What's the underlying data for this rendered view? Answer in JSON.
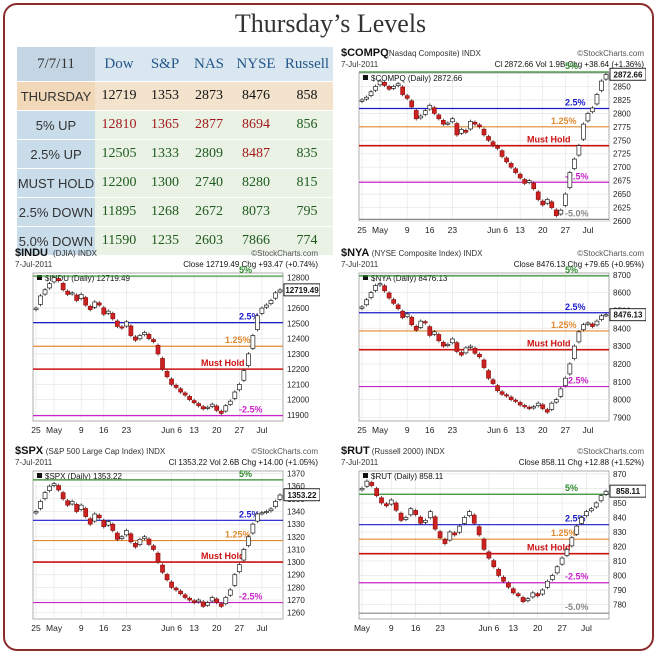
{
  "title": "Thursday’s Levels",
  "table": {
    "date": "7/7/11",
    "headers": [
      "Dow",
      "S&P",
      "NAS",
      "NYSE",
      "Russell"
    ],
    "rows": [
      {
        "label": "THURSDAY",
        "values": [
          "12719",
          "1353",
          "2873",
          "8476",
          "858"
        ],
        "colors": [
          "blk",
          "blk",
          "blk",
          "blk",
          "blk"
        ]
      },
      {
        "label": "5% UP",
        "values": [
          "12810",
          "1365",
          "2877",
          "8694",
          "856"
        ],
        "colors": [
          "red",
          "red",
          "red",
          "red",
          "grn"
        ]
      },
      {
        "label": "2.5% UP",
        "values": [
          "12505",
          "1333",
          "2809",
          "8487",
          "835"
        ],
        "colors": [
          "grn",
          "grn",
          "grn",
          "red",
          "grn"
        ]
      },
      {
        "label": "MUST HOLD",
        "values": [
          "12200",
          "1300",
          "2740",
          "8280",
          "815"
        ],
        "colors": [
          "grn",
          "grn",
          "grn",
          "grn",
          "grn"
        ]
      },
      {
        "label": "2.5% DOWN",
        "values": [
          "11895",
          "1268",
          "2672",
          "8073",
          "795"
        ],
        "colors": [
          "grn",
          "grn",
          "grn",
          "grn",
          "grn"
        ]
      },
      {
        "label": "5.0% DOWN",
        "values": [
          "11590",
          "1235",
          "2603",
          "7866",
          "774"
        ],
        "colors": [
          "grn",
          "grn",
          "grn",
          "grn",
          "grn"
        ]
      }
    ]
  },
  "colors": {
    "up5": "#2e8b2e",
    "up25": "#1a1acc",
    "up125": "#e08a30",
    "must": "#cc1111",
    "down25": "#cc22cc",
    "down5": "#888888"
  },
  "chart_data": [
    {
      "type": "candlestick",
      "id": "compq",
      "symbol": "$COMPQ",
      "name": "(Nasdaq Composite)",
      "kind": "INDX",
      "source": "©StockCharts.com",
      "date": "7-Jul-2011",
      "stats": "Cl 2872.66  Vol 1.9B  Chg +38.64 (+1.36%)",
      "legend": "$COMPQ (Daily) 2872.66",
      "last": 2872.66,
      "last_label": "2872.66",
      "ylim": [
        2600,
        2875
      ],
      "yticks": [
        2600,
        2625,
        2650,
        2675,
        2700,
        2725,
        2750,
        2775,
        2800,
        2825,
        2850
      ],
      "xticks": [
        {
          "label": "25",
          "i": 0
        },
        {
          "label": "May",
          "i": 4
        },
        {
          "label": "9",
          "i": 10
        },
        {
          "label": "16",
          "i": 15
        },
        {
          "label": "23",
          "i": 20
        },
        {
          "label": "Jun 6",
          "i": 30
        },
        {
          "label": "13",
          "i": 35
        },
        {
          "label": "20",
          "i": 40
        },
        {
          "label": "27",
          "i": 45
        },
        {
          "label": "Jul",
          "i": 50
        }
      ],
      "levels": [
        {
          "label": "5%",
          "value": 2877,
          "c": "up5"
        },
        {
          "label": "2.5%",
          "value": 2809,
          "c": "up25"
        },
        {
          "label": "1.25%",
          "value": 2775,
          "c": "up125"
        },
        {
          "label": "Must Hold",
          "value": 2740,
          "c": "must"
        },
        {
          "label": "-2.5%",
          "value": 2672,
          "c": "down25"
        },
        {
          "label": "-5.0%",
          "value": 2603,
          "c": "down5"
        }
      ],
      "closes": [
        2825,
        2830,
        2840,
        2850,
        2860,
        2852,
        2845,
        2850,
        2855,
        2835,
        2828,
        2812,
        2790,
        2795,
        2805,
        2815,
        2800,
        2790,
        2780,
        2782,
        2790,
        2760,
        2770,
        2765,
        2785,
        2780,
        2775,
        2760,
        2750,
        2740,
        2735,
        2720,
        2710,
        2700,
        2690,
        2680,
        2670,
        2675,
        2660,
        2640,
        2630,
        2640,
        2625,
        2610,
        2620,
        2650,
        2690,
        2715,
        2740,
        2780,
        2800,
        2810,
        2835,
        2860,
        2872
      ]
    },
    {
      "type": "candlestick",
      "id": "indu",
      "symbol": "$INDU",
      "name": "(DJIA)",
      "kind": "INDX",
      "source": "©StockCharts.com",
      "date": "7-Jul-2011",
      "stats": "Close 12719.49  Chg +93.47 (+0.74%)",
      "legend": "$INDU (Daily) 12719.49",
      "last": 12719.49,
      "last_label": "12719.49",
      "ylim": [
        11860,
        12830
      ],
      "yticks": [
        11900,
        12000,
        12100,
        12200,
        12300,
        12400,
        12500,
        12600,
        12700,
        12800
      ],
      "xticks": [
        {
          "label": "25",
          "i": 0
        },
        {
          "label": "May",
          "i": 4
        },
        {
          "label": "9",
          "i": 10
        },
        {
          "label": "16",
          "i": 15
        },
        {
          "label": "23",
          "i": 20
        },
        {
          "label": "Jun 6",
          "i": 30
        },
        {
          "label": "13",
          "i": 35
        },
        {
          "label": "20",
          "i": 40
        },
        {
          "label": "27",
          "i": 45
        },
        {
          "label": "Jul",
          "i": 50
        }
      ],
      "levels": [
        {
          "label": "5%",
          "value": 12810,
          "c": "up5"
        },
        {
          "label": "2.5%",
          "value": 12505,
          "c": "up25"
        },
        {
          "label": "1.25%",
          "value": 12350,
          "c": "up125"
        },
        {
          "label": "Must Hold",
          "value": 12200,
          "c": "must"
        },
        {
          "label": "-2.5%",
          "value": 11895,
          "c": "down25"
        }
      ],
      "closes": [
        12600,
        12680,
        12720,
        12760,
        12800,
        12780,
        12720,
        12690,
        12700,
        12650,
        12690,
        12620,
        12590,
        12640,
        12620,
        12560,
        12580,
        12530,
        12480,
        12470,
        12510,
        12420,
        12390,
        12420,
        12440,
        12400,
        12380,
        12300,
        12200,
        12150,
        12100,
        12080,
        12050,
        12030,
        12000,
        11980,
        11960,
        11940,
        11950,
        11970,
        11930,
        11910,
        11960,
        11990,
        12050,
        12100,
        12190,
        12300,
        12420,
        12550,
        12600,
        12620,
        12650,
        12700,
        12719
      ]
    },
    {
      "type": "candlestick",
      "id": "nya",
      "symbol": "$NYA",
      "name": "(NYSE Composite Index)",
      "kind": "INDX",
      "source": "©StockCharts.com",
      "date": "7-Jul-2011",
      "stats": "Close 8476.13  Chg +79.65 (+0.95%)",
      "legend": "$NYA (Daily) 8476.13",
      "last": 8476.13,
      "last_label": "8476.13",
      "ylim": [
        7880,
        8710
      ],
      "yticks": [
        7900,
        8000,
        8100,
        8200,
        8300,
        8400,
        8500,
        8600,
        8700
      ],
      "xticks": [
        {
          "label": "25",
          "i": 0
        },
        {
          "label": "May",
          "i": 4
        },
        {
          "label": "9",
          "i": 10
        },
        {
          "label": "16",
          "i": 15
        },
        {
          "label": "23",
          "i": 20
        },
        {
          "label": "Jun 6",
          "i": 30
        },
        {
          "label": "13",
          "i": 35
        },
        {
          "label": "20",
          "i": 40
        },
        {
          "label": "27",
          "i": 45
        },
        {
          "label": "Jul",
          "i": 50
        }
      ],
      "levels": [
        {
          "label": "5%",
          "value": 8694,
          "c": "up5"
        },
        {
          "label": "2.5%",
          "value": 8487,
          "c": "up25"
        },
        {
          "label": "1.25%",
          "value": 8385,
          "c": "up125"
        },
        {
          "label": "Must Hold",
          "value": 8280,
          "c": "must"
        },
        {
          "label": "-2.5%",
          "value": 8073,
          "c": "down25"
        }
      ],
      "closes": [
        8520,
        8560,
        8600,
        8640,
        8650,
        8610,
        8570,
        8540,
        8510,
        8460,
        8480,
        8420,
        8390,
        8440,
        8430,
        8360,
        8380,
        8330,
        8300,
        8310,
        8340,
        8270,
        8250,
        8290,
        8300,
        8260,
        8240,
        8180,
        8120,
        8090,
        8050,
        8030,
        8020,
        8000,
        7990,
        7970,
        7960,
        7950,
        7960,
        7980,
        7950,
        7930,
        7980,
        8000,
        8060,
        8120,
        8200,
        8300,
        8380,
        8420,
        8430,
        8410,
        8440,
        8470,
        8476
      ]
    },
    {
      "type": "candlestick",
      "id": "spx",
      "symbol": "$SPX",
      "name": "(S&P 500 Large Cap Index)",
      "kind": "INDX",
      "source": "©StockCharts.com",
      "date": "7-Jul-2011",
      "stats": "Cl 1353.22  Vol 2.6B  Chg +14.00 (+1.05%)",
      "legend": "$SPX (Daily) 1353.22",
      "last": 1353.22,
      "last_label": "1353.22",
      "ylim": [
        1255,
        1372
      ],
      "yticks": [
        1260,
        1270,
        1280,
        1290,
        1300,
        1310,
        1320,
        1330,
        1340,
        1350,
        1360,
        1370
      ],
      "xticks": [
        {
          "label": "25",
          "i": 0
        },
        {
          "label": "May",
          "i": 4
        },
        {
          "label": "9",
          "i": 10
        },
        {
          "label": "16",
          "i": 15
        },
        {
          "label": "23",
          "i": 20
        },
        {
          "label": "Jun 6",
          "i": 30
        },
        {
          "label": "13",
          "i": 35
        },
        {
          "label": "20",
          "i": 40
        },
        {
          "label": "27",
          "i": 45
        },
        {
          "label": "Jul",
          "i": 50
        }
      ],
      "levels": [
        {
          "label": "5%",
          "value": 1365,
          "c": "up5"
        },
        {
          "label": "2.5%",
          "value": 1333,
          "c": "up25"
        },
        {
          "label": "1.25%",
          "value": 1317,
          "c": "up125"
        },
        {
          "label": "Must Hold",
          "value": 1300,
          "c": "must"
        },
        {
          "label": "-2.5%",
          "value": 1268,
          "c": "down25"
        }
      ],
      "closes": [
        1340,
        1348,
        1355,
        1360,
        1362,
        1357,
        1350,
        1345,
        1348,
        1340,
        1345,
        1336,
        1330,
        1338,
        1335,
        1328,
        1332,
        1325,
        1318,
        1320,
        1325,
        1316,
        1312,
        1318,
        1320,
        1314,
        1310,
        1300,
        1292,
        1286,
        1280,
        1278,
        1275,
        1272,
        1270,
        1268,
        1270,
        1265,
        1268,
        1272,
        1268,
        1265,
        1272,
        1278,
        1290,
        1298,
        1310,
        1320,
        1330,
        1338,
        1339,
        1340,
        1342,
        1348,
        1353
      ]
    },
    {
      "type": "candlestick",
      "id": "rut",
      "symbol": "$RUT",
      "name": "(Russell 2000)",
      "kind": "INDX",
      "source": "©StockCharts.com",
      "date": "7-Jul-2011",
      "stats": "Close 858.11  Chg +12.88 (+1.52%)",
      "legend": "$RUT (Daily) 858.11",
      "last": 858.11,
      "last_label": "858.11",
      "ylim": [
        770,
        872
      ],
      "yticks": [
        780,
        790,
        800,
        810,
        820,
        830,
        840,
        850,
        860,
        870
      ],
      "xticks": [
        {
          "label": "May",
          "i": 0
        },
        {
          "label": "9",
          "i": 6
        },
        {
          "label": "16",
          "i": 11
        },
        {
          "label": "23",
          "i": 16
        },
        {
          "label": "Jun 6",
          "i": 26
        },
        {
          "label": "13",
          "i": 31
        },
        {
          "label": "20",
          "i": 36
        },
        {
          "label": "27",
          "i": 41
        },
        {
          "label": "Jul",
          "i": 46
        }
      ],
      "levels": [
        {
          "label": "5%",
          "value": 856,
          "c": "up5"
        },
        {
          "label": "2.5%",
          "value": 835,
          "c": "up25"
        },
        {
          "label": "1.25%",
          "value": 825,
          "c": "up125"
        },
        {
          "label": "Must Hold",
          "value": 815,
          "c": "must"
        },
        {
          "label": "-2.5%",
          "value": 795,
          "c": "down25"
        },
        {
          "label": "-5.0%",
          "value": 774,
          "c": "down5"
        }
      ],
      "closes": [
        860,
        865,
        862,
        855,
        850,
        848,
        852,
        845,
        838,
        840,
        846,
        842,
        836,
        838,
        844,
        832,
        826,
        822,
        830,
        828,
        834,
        840,
        844,
        836,
        828,
        818,
        812,
        806,
        800,
        796,
        792,
        788,
        786,
        782,
        784,
        788,
        786,
        790,
        796,
        800,
        806,
        812,
        818,
        826,
        834,
        840,
        844,
        846,
        850,
        855,
        858
      ]
    }
  ]
}
